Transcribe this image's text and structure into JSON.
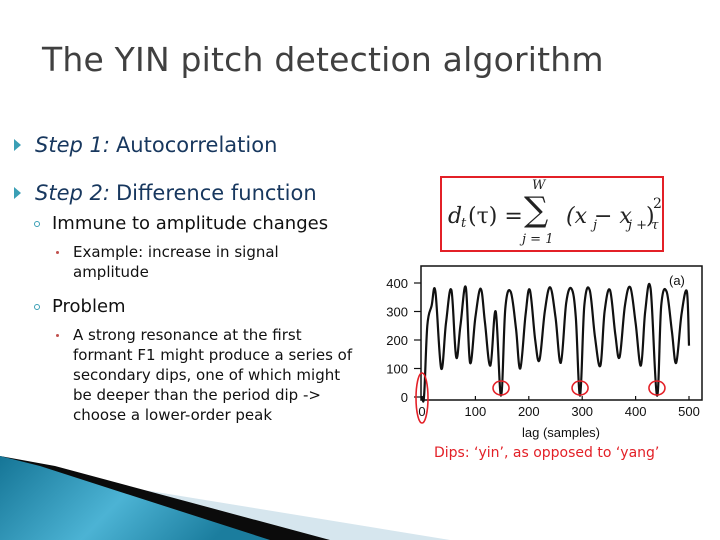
{
  "slide": {
    "title": "The YIN pitch detection algorithm",
    "bullets": [
      {
        "step_label": "Step 1:",
        "text": "Autocorrelation"
      },
      {
        "step_label": "Step 2:",
        "text": "Difference function",
        "sub": [
          {
            "text": "Immune to amplitude changes",
            "sub": [
              {
                "text": "Example: increase in signal amplitude"
              }
            ]
          },
          {
            "text": "Problem",
            "sub": [
              {
                "text": "A strong resonance at the first formant F1 might produce a series of secondary dips, one of which might be deeper than the period dip -> choose a lower-order peak"
              }
            ]
          }
        ]
      }
    ],
    "formula": {
      "lhs": "d",
      "lhs_sub": "t",
      "arg": "(τ) =",
      "sum_symbol": "∑",
      "sum_upper": "W",
      "sum_lower": "j = 1",
      "term_open": "(x",
      "term_sub1": "j",
      "term_minus": " − x",
      "term_sub2": "j + τ",
      "term_close": ")",
      "power": "2"
    },
    "caption": "Dips: ‘yin’, as opposed to ‘yang’",
    "colors": {
      "title": "#404040",
      "level1_text": "#17375e",
      "bullet_arrow": "#3a9fb5",
      "highlight_red": "#e32027",
      "deco_blue": "#1d7fa0",
      "deco_light": "#d6e6ee"
    }
  },
  "chart_data": {
    "type": "line",
    "title": "",
    "panel_label": "(a)",
    "xlabel": "lag (samples)",
    "ylabel": "",
    "xlim": [
      0,
      500
    ],
    "ylim": [
      0,
      400
    ],
    "xticks": [
      0,
      100,
      200,
      300,
      400,
      500
    ],
    "yticks": [
      0,
      100,
      200,
      300,
      400
    ],
    "grid": false,
    "series": [
      {
        "name": "d_t(tau)",
        "x": [
          0,
          4,
          10,
          18,
          25,
          36,
          45,
          55,
          64,
          72,
          82,
          90,
          100,
          110,
          118,
          128,
          138,
          148,
          156,
          166,
          176,
          184,
          194,
          202,
          212,
          220,
          230,
          240,
          250,
          260,
          270,
          280,
          288,
          296,
          304,
          314,
          324,
          334,
          342,
          352,
          362,
          370,
          380,
          390,
          400,
          410,
          418,
          428,
          440,
          448,
          458,
          468,
          476,
          486,
          496,
          500
        ],
        "y": [
          0,
          5,
          250,
          320,
          370,
          100,
          260,
          375,
          140,
          250,
          385,
          120,
          280,
          380,
          260,
          110,
          300,
          5,
          310,
          370,
          240,
          100,
          290,
          375,
          200,
          130,
          300,
          385,
          280,
          120,
          330,
          380,
          280,
          5,
          320,
          375,
          210,
          110,
          300,
          375,
          220,
          140,
          320,
          385,
          260,
          110,
          300,
          380,
          5,
          320,
          370,
          230,
          120,
          290,
          370,
          180
        ]
      }
    ],
    "annotations": [
      {
        "type": "ellipse",
        "at_lag": 0,
        "label": "zero-lag dip"
      },
      {
        "type": "circle",
        "at_lag": 148,
        "label": "period dip"
      },
      {
        "type": "circle",
        "at_lag": 296,
        "label": "period dip"
      },
      {
        "type": "circle",
        "at_lag": 440,
        "label": "period dip"
      }
    ]
  }
}
